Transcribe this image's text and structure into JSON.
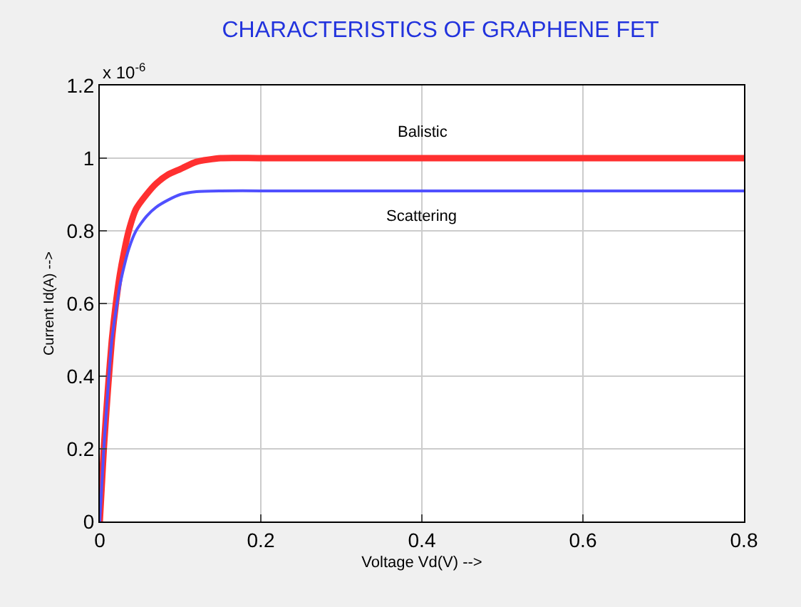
{
  "chart_data": {
    "type": "line",
    "title": "CHARACTERISTICS OF GRAPHENE FET",
    "xlabel": "Voltage Vd(V) -->",
    "ylabel": "Current Id(A) -->",
    "x": [
      0,
      0.005,
      0.01,
      0.015,
      0.02,
      0.025,
      0.03,
      0.036,
      0.045,
      0.058,
      0.07,
      0.085,
      0.1,
      0.12,
      0.15,
      0.2,
      0.4,
      0.6,
      0.8
    ],
    "series": [
      {
        "name": "Balistic",
        "color": "#ff3030",
        "values": [
          0,
          0.2,
          0.36,
          0.5,
          0.6,
          0.68,
          0.74,
          0.8,
          0.86,
          0.9,
          0.93,
          0.955,
          0.97,
          0.99,
          1,
          1,
          1,
          1,
          1
        ]
      },
      {
        "name": "Scattering",
        "color": "#5050ff",
        "values": [
          0,
          0.2,
          0.36,
          0.5,
          0.58,
          0.65,
          0.7,
          0.75,
          0.8,
          0.84,
          0.865,
          0.885,
          0.9,
          0.908,
          0.91,
          0.91,
          0.91,
          0.91,
          0.91
        ]
      }
    ],
    "annotations": [
      "x 10$^{-6}$"
    ],
    "xlim": [
      0,
      0.8
    ],
    "ylim": [
      0,
      1.2
    ],
    "xticks": [
      0,
      0.2,
      0.4,
      0.6,
      0.8
    ],
    "yticks": [
      0,
      0.2,
      0.4,
      0.6,
      0.8,
      1,
      1.2
    ],
    "grid": true,
    "legend": false,
    "marker": "none",
    "line_style": "solid"
  }
}
